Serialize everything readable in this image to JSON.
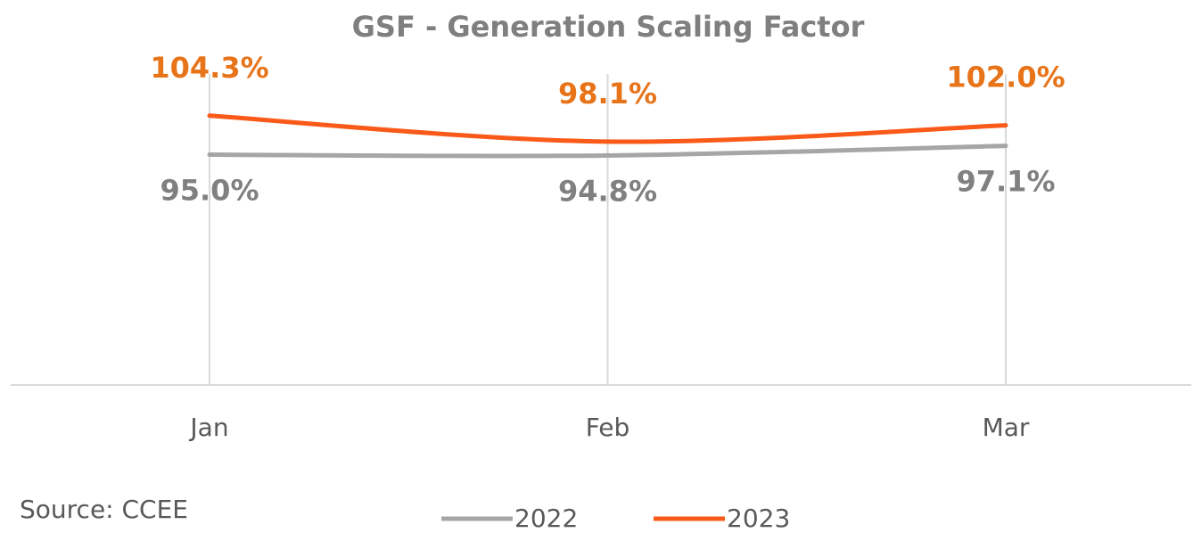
{
  "chart_data": {
    "type": "line",
    "title": "GSF - Generation Scaling Factor",
    "source": "Source: CCEE",
    "categories": [
      "Jan",
      "Feb",
      "Mar"
    ],
    "series": [
      {
        "name": "2022",
        "color": "#a6a6a6",
        "label_color": "#808080",
        "label_side": "below",
        "values": [
          95.0,
          94.8,
          97.1
        ],
        "value_labels": [
          "95.0%",
          "94.8%",
          "97.1%"
        ]
      },
      {
        "name": "2023",
        "color": "#fa5a19",
        "label_color": "#e8741a",
        "label_side": "above",
        "values": [
          104.3,
          98.1,
          102.0
        ],
        "value_labels": [
          "104.3%",
          "98.1%",
          "102.0%"
        ]
      }
    ],
    "ylim": [
      40,
      110
    ],
    "smooth": true,
    "grid": true,
    "legend": "bottom"
  }
}
